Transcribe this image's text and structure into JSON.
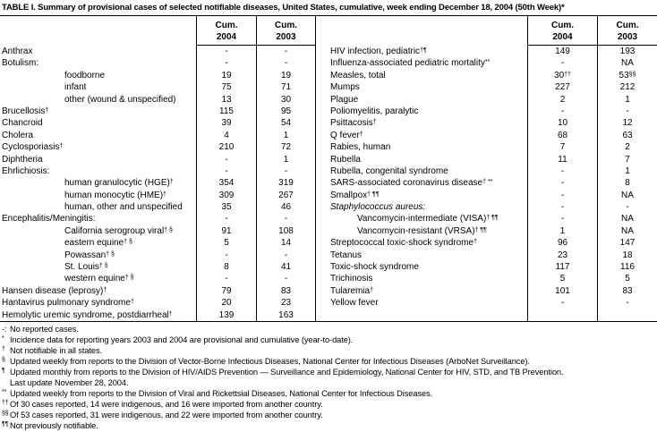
{
  "title": "TABLE I. Summary of provisional cases of selected notifiable diseases, United States, cumulative, week ending December 18, 2004 (50th Week)*",
  "header": {
    "cum": "Cum.",
    "y2004": "2004",
    "y2003": "2003"
  },
  "left_rows": [
    {
      "name": "Anthrax",
      "sup": "",
      "indent": false,
      "italic": false,
      "v04": "-",
      "v04s": "",
      "v03": "-",
      "v03s": ""
    },
    {
      "name": "Botulism:",
      "sup": "",
      "indent": false,
      "italic": false,
      "v04": "-",
      "v04s": "",
      "v03": "-",
      "v03s": ""
    },
    {
      "name": "foodborne",
      "sup": "",
      "indent": true,
      "italic": false,
      "v04": "19",
      "v04s": "",
      "v03": "19",
      "v03s": ""
    },
    {
      "name": "infant",
      "sup": "",
      "indent": true,
      "italic": false,
      "v04": "75",
      "v04s": "",
      "v03": "71",
      "v03s": ""
    },
    {
      "name": "other (wound & unspecified)",
      "sup": "",
      "indent": true,
      "italic": false,
      "v04": "13",
      "v04s": "",
      "v03": "30",
      "v03s": ""
    },
    {
      "name": "Brucellosis",
      "sup": "†",
      "indent": false,
      "italic": false,
      "v04": "115",
      "v04s": "",
      "v03": "95",
      "v03s": ""
    },
    {
      "name": "Chancroid",
      "sup": "",
      "indent": false,
      "italic": false,
      "v04": "39",
      "v04s": "",
      "v03": "54",
      "v03s": ""
    },
    {
      "name": "Cholera",
      "sup": "",
      "indent": false,
      "italic": false,
      "v04": "4",
      "v04s": "",
      "v03": "1",
      "v03s": ""
    },
    {
      "name": "Cyclosporiasis",
      "sup": "†",
      "indent": false,
      "italic": false,
      "v04": "210",
      "v04s": "",
      "v03": "72",
      "v03s": ""
    },
    {
      "name": "Diphtheria",
      "sup": "",
      "indent": false,
      "italic": false,
      "v04": "-",
      "v04s": "",
      "v03": "1",
      "v03s": ""
    },
    {
      "name": "Ehrlichiosis:",
      "sup": "",
      "indent": false,
      "italic": false,
      "v04": "-",
      "v04s": "",
      "v03": "-",
      "v03s": ""
    },
    {
      "name": "human granulocytic (HGE)",
      "sup": "†",
      "indent": true,
      "italic": false,
      "v04": "354",
      "v04s": "",
      "v03": "319",
      "v03s": ""
    },
    {
      "name": "human monocytic (HME)",
      "sup": "†",
      "indent": true,
      "italic": false,
      "v04": "309",
      "v04s": "",
      "v03": "267",
      "v03s": ""
    },
    {
      "name": "human, other and unspecified",
      "sup": "",
      "indent": true,
      "italic": false,
      "v04": "35",
      "v04s": "",
      "v03": "46",
      "v03s": ""
    },
    {
      "name": "Encephalitis/Meningitis:",
      "sup": "",
      "indent": false,
      "italic": false,
      "v04": "-",
      "v04s": "",
      "v03": "-",
      "v03s": ""
    },
    {
      "name": "California serogroup viral",
      "sup": "† §",
      "indent": true,
      "italic": false,
      "v04": "91",
      "v04s": "",
      "v03": "108",
      "v03s": ""
    },
    {
      "name": "eastern equine",
      "sup": "† §",
      "indent": true,
      "italic": false,
      "v04": "5",
      "v04s": "",
      "v03": "14",
      "v03s": ""
    },
    {
      "name": "Powassan",
      "sup": "† §",
      "indent": true,
      "italic": false,
      "v04": "-",
      "v04s": "",
      "v03": "-",
      "v03s": ""
    },
    {
      "name": "St. Louis",
      "sup": "† §",
      "indent": true,
      "italic": false,
      "v04": "8",
      "v04s": "",
      "v03": "41",
      "v03s": ""
    },
    {
      "name": "western equine",
      "sup": "† §",
      "indent": true,
      "italic": false,
      "v04": "-",
      "v04s": "",
      "v03": "-",
      "v03s": ""
    },
    {
      "name": "Hansen disease (leprosy)",
      "sup": "†",
      "indent": false,
      "italic": false,
      "v04": "79",
      "v04s": "",
      "v03": "83",
      "v03s": ""
    },
    {
      "name": "Hantavirus pulmonary syndrome",
      "sup": "†",
      "indent": false,
      "italic": false,
      "v04": "20",
      "v04s": "",
      "v03": "23",
      "v03s": ""
    },
    {
      "name": "Hemolytic uremic syndrome, postdiarrheal",
      "sup": "†",
      "indent": false,
      "italic": false,
      "v04": "139",
      "v04s": "",
      "v03": "163",
      "v03s": ""
    }
  ],
  "right_rows": [
    {
      "name": "HIV infection, pediatric",
      "sup": "†¶",
      "indent": false,
      "italic": false,
      "v04": "149",
      "v04s": "",
      "v03": "193",
      "v03s": ""
    },
    {
      "name": "Influenza-associated pediatric mortality",
      "sup": "**",
      "indent": false,
      "italic": false,
      "v04": "-",
      "v04s": "",
      "v03": "NA",
      "v03s": ""
    },
    {
      "name": "Measles, total",
      "sup": "",
      "indent": false,
      "italic": false,
      "v04": "30",
      "v04s": "††",
      "v03": "53",
      "v03s": "§§"
    },
    {
      "name": "Mumps",
      "sup": "",
      "indent": false,
      "italic": false,
      "v04": "227",
      "v04s": "",
      "v03": "212",
      "v03s": ""
    },
    {
      "name": "Plague",
      "sup": "",
      "indent": false,
      "italic": false,
      "v04": "2",
      "v04s": "",
      "v03": "1",
      "v03s": ""
    },
    {
      "name": "Poliomyelitis, paralytic",
      "sup": "",
      "indent": false,
      "italic": false,
      "v04": "-",
      "v04s": "",
      "v03": "-",
      "v03s": ""
    },
    {
      "name": "Psittacosis",
      "sup": "†",
      "indent": false,
      "italic": false,
      "v04": "10",
      "v04s": "",
      "v03": "12",
      "v03s": ""
    },
    {
      "name": "Q fever",
      "sup": "†",
      "indent": false,
      "italic": false,
      "v04": "68",
      "v04s": "",
      "v03": "63",
      "v03s": ""
    },
    {
      "name": "Rabies, human",
      "sup": "",
      "indent": false,
      "italic": false,
      "v04": "7",
      "v04s": "",
      "v03": "2",
      "v03s": ""
    },
    {
      "name": "Rubella",
      "sup": "",
      "indent": false,
      "italic": false,
      "v04": "11",
      "v04s": "",
      "v03": "7",
      "v03s": ""
    },
    {
      "name": "Rubella, congenital syndrome",
      "sup": "",
      "indent": false,
      "italic": false,
      "v04": "-",
      "v04s": "",
      "v03": "1",
      "v03s": ""
    },
    {
      "name": "SARS-associated coronavirus disease",
      "sup": "† **",
      "indent": false,
      "italic": false,
      "v04": "-",
      "v04s": "",
      "v03": "8",
      "v03s": ""
    },
    {
      "name": "Smallpox",
      "sup": "† ¶¶",
      "indent": false,
      "italic": false,
      "v04": "-",
      "v04s": "",
      "v03": "NA",
      "v03s": ""
    },
    {
      "name": "Staphylococcus aureus:",
      "sup": "",
      "indent": false,
      "italic": true,
      "v04": "-",
      "v04s": "",
      "v03": "-",
      "v03s": ""
    },
    {
      "name": "Vancomycin-intermediate (VISA)",
      "sup": "† ¶¶",
      "indent": true,
      "italic": false,
      "v04": "-",
      "v04s": "",
      "v03": "NA",
      "v03s": ""
    },
    {
      "name": "Vancomycin-resistant (VRSA)",
      "sup": "† ¶¶",
      "indent": true,
      "italic": false,
      "v04": "1",
      "v04s": "",
      "v03": "NA",
      "v03s": ""
    },
    {
      "name": "Streptococcal toxic-shock syndrome",
      "sup": "†",
      "indent": false,
      "italic": false,
      "v04": "96",
      "v04s": "",
      "v03": "147",
      "v03s": ""
    },
    {
      "name": "Tetanus",
      "sup": "",
      "indent": false,
      "italic": false,
      "v04": "23",
      "v04s": "",
      "v03": "18",
      "v03s": ""
    },
    {
      "name": "Toxic-shock syndrome",
      "sup": "",
      "indent": false,
      "italic": false,
      "v04": "117",
      "v04s": "",
      "v03": "116",
      "v03s": ""
    },
    {
      "name": "Trichinosis",
      "sup": "",
      "indent": false,
      "italic": false,
      "v04": "5",
      "v04s": "",
      "v03": "5",
      "v03s": ""
    },
    {
      "name": "Tularemia",
      "sup": "†",
      "indent": false,
      "italic": false,
      "v04": "101",
      "v04s": "",
      "v03": "83",
      "v03s": ""
    },
    {
      "name": "Yellow fever",
      "sup": "",
      "indent": false,
      "italic": false,
      "v04": "-",
      "v04s": "",
      "v03": "-",
      "v03s": ""
    },
    {
      "name": "",
      "sup": "",
      "indent": false,
      "italic": false,
      "v04": "",
      "v04s": "",
      "v03": "",
      "v03s": ""
    }
  ],
  "footnotes": [
    {
      "marker": "-:",
      "sup": false,
      "text": "No reported cases."
    },
    {
      "marker": "*",
      "sup": true,
      "text": "Incidence data for reporting years 2003 and 2004 are provisional and cumulative (year-to-date)."
    },
    {
      "marker": "†",
      "sup": true,
      "text": "Not notifiable in all states."
    },
    {
      "marker": "§",
      "sup": true,
      "text": "Updated weekly from reports to the Division of Vector-Borne Infectious Diseases, National Center for Infectious Diseases (ArboNet Surveillance)."
    },
    {
      "marker": "¶",
      "sup": true,
      "text": "Updated monthly from reports to the Division of HIV/AIDS Prevention — Surveillance and Epidemiology, National Center for HIV, STD, and TB Prevention."
    },
    {
      "marker": "",
      "sup": false,
      "text": "Last update November 28, 2004."
    },
    {
      "marker": "**",
      "sup": true,
      "text": "Updated weekly from reports to the Division of Viral and Rickettsial Diseases, National Center for Infectious Diseases."
    },
    {
      "marker": "††",
      "sup": true,
      "text": "Of 30 cases reported, 14 were indigenous, and 16 were imported from another country."
    },
    {
      "marker": "§§",
      "sup": true,
      "text": "Of 53 cases reported, 31 were indigenous, and 22 were imported from another country."
    },
    {
      "marker": "¶¶",
      "sup": true,
      "text": "Not previously notifiable."
    }
  ]
}
